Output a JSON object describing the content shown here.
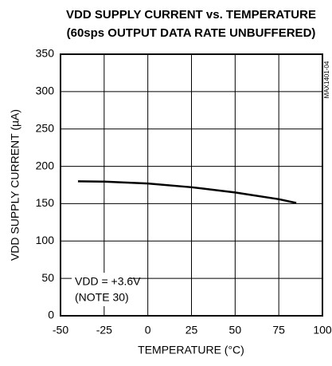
{
  "chart_data": {
    "type": "line",
    "title": "VDD SUPPLY CURRENT vs. TEMPERATURE",
    "subtitle": "(60sps OUTPUT DATA RATE UNBUFFERED)",
    "x_label": "TEMPERATURE (°C)",
    "y_label": "VDD SUPPLY CURRENT (µA)",
    "annotations": [
      "VDD = +3.6V",
      "(NOTE 30)",
      "MAX1401-04"
    ],
    "x": [
      -40,
      -25,
      0,
      25,
      50,
      75,
      85
    ],
    "series": [
      {
        "name": "VDD = +3.6V",
        "color": "#000000",
        "values": [
          180,
          179.5,
          177,
          172,
          165,
          156,
          151
        ]
      }
    ],
    "xlim": [
      -50,
      100
    ],
    "xticks": [
      -50,
      -25,
      0,
      25,
      50,
      75,
      100
    ],
    "ylim": [
      0,
      350
    ],
    "yticks": [
      0,
      50,
      100,
      150,
      200,
      250,
      300,
      350
    ],
    "grid": true
  }
}
